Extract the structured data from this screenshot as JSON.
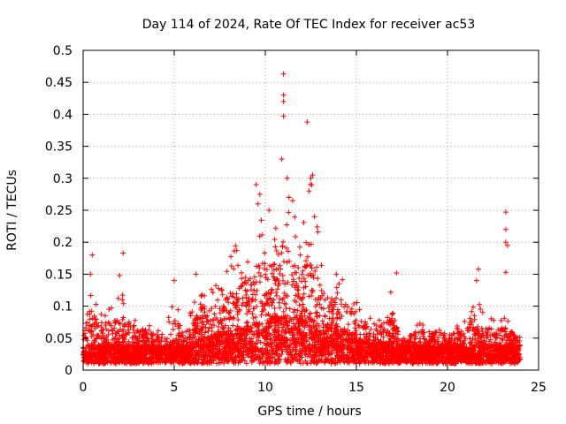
{
  "chart_data": {
    "type": "scatter",
    "title": "Day 114 of 2024, Rate Of TEC Index for receiver ac53",
    "xlabel": "GPS time / hours",
    "ylabel": "ROTI / TECUs",
    "xlim": [
      0,
      25
    ],
    "ylim": [
      0,
      0.5
    ],
    "xticks": [
      "0",
      "5",
      "10",
      "15",
      "20",
      "25"
    ],
    "yticks": [
      "0",
      "0.05",
      "0.1",
      "0.15",
      "0.2",
      "0.25",
      "0.3",
      "0.35",
      "0.4",
      "0.45",
      "0.5"
    ],
    "grid": true,
    "marker": "plus",
    "series_color": "#ff0000",
    "envelope": {
      "hours": [
        0.0,
        0.3,
        0.5,
        0.8,
        1.5,
        2.2,
        3.0,
        3.5,
        4.5,
        5.0,
        5.5,
        6.0,
        6.5,
        7.0,
        7.5,
        8.0,
        8.5,
        9.0,
        9.5,
        10.0,
        10.5,
        11.0,
        11.5,
        12.0,
        12.5,
        13.0,
        13.5,
        14.0,
        14.5,
        15.0,
        15.5,
        16.0,
        16.5,
        17.0,
        17.5,
        18.0,
        18.5,
        19.0,
        19.5,
        20.0,
        20.5,
        21.0,
        21.5,
        22.0,
        22.5,
        23.0,
        23.5,
        24.0
      ],
      "roti_upper": [
        0.06,
        0.12,
        0.14,
        0.1,
        0.1,
        0.12,
        0.08,
        0.08,
        0.06,
        0.12,
        0.07,
        0.1,
        0.14,
        0.14,
        0.13,
        0.18,
        0.2,
        0.2,
        0.24,
        0.25,
        0.24,
        0.3,
        0.26,
        0.22,
        0.3,
        0.2,
        0.16,
        0.15,
        0.14,
        0.12,
        0.08,
        0.09,
        0.1,
        0.13,
        0.05,
        0.06,
        0.08,
        0.06,
        0.08,
        0.06,
        0.07,
        0.08,
        0.12,
        0.09,
        0.08,
        0.09,
        0.07,
        0.07
      ],
      "roti_base": [
        0.025,
        0.03,
        0.03,
        0.03,
        0.03,
        0.03,
        0.03,
        0.03,
        0.03,
        0.03,
        0.03,
        0.035,
        0.04,
        0.045,
        0.05,
        0.05,
        0.055,
        0.06,
        0.065,
        0.07,
        0.075,
        0.075,
        0.075,
        0.075,
        0.07,
        0.065,
        0.06,
        0.055,
        0.05,
        0.045,
        0.04,
        0.035,
        0.035,
        0.035,
        0.03,
        0.03,
        0.03,
        0.03,
        0.03,
        0.03,
        0.03,
        0.03,
        0.03,
        0.03,
        0.03,
        0.03,
        0.03,
        0.03
      ]
    },
    "points": [
      [
        0.5,
        0.18
      ],
      [
        2.2,
        0.183
      ],
      [
        2.0,
        0.148
      ],
      [
        0.4,
        0.15
      ],
      [
        9.5,
        0.29
      ],
      [
        9.7,
        0.275
      ],
      [
        9.6,
        0.26
      ],
      [
        10.2,
        0.25
      ],
      [
        10.9,
        0.33
      ],
      [
        11.0,
        0.463
      ],
      [
        11.0,
        0.43
      ],
      [
        11.0,
        0.42
      ],
      [
        11.0,
        0.397
      ],
      [
        11.2,
        0.3
      ],
      [
        11.3,
        0.27
      ],
      [
        11.5,
        0.265
      ],
      [
        12.3,
        0.388
      ],
      [
        12.5,
        0.3
      ],
      [
        12.6,
        0.305
      ],
      [
        12.4,
        0.28
      ],
      [
        12.7,
        0.24
      ],
      [
        21.7,
        0.158
      ],
      [
        21.6,
        0.14
      ],
      [
        23.2,
        0.247
      ],
      [
        23.2,
        0.22
      ],
      [
        23.2,
        0.2
      ],
      [
        23.3,
        0.195
      ],
      [
        23.2,
        0.153
      ],
      [
        17.2,
        0.152
      ],
      [
        13.9,
        0.15
      ],
      [
        6.2,
        0.15
      ],
      [
        5.0,
        0.14
      ]
    ]
  }
}
